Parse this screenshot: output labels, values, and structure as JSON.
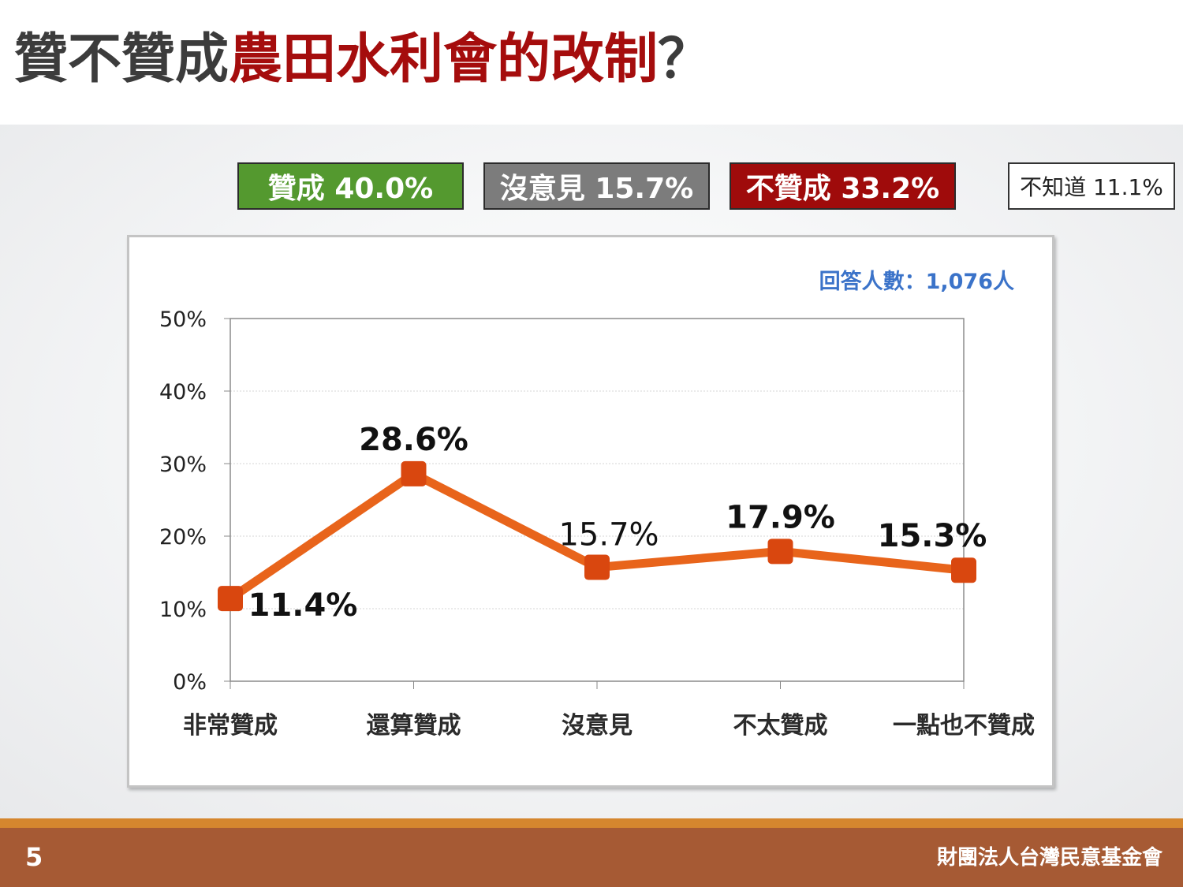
{
  "slide": {
    "title_prefix": "贊不贊成",
    "title_highlight": "農田水利會的改制",
    "title_suffix": "？",
    "page_number": "5",
    "organization": "財團法人台灣民意基金會"
  },
  "summary": {
    "agree": "贊成 40.0%",
    "neutral": "沒意見 15.7%",
    "disagree": "不贊成 33.2%",
    "unknown": "不知道 11.1%"
  },
  "colors": {
    "agree": "#54992f",
    "neutral": "#7c7c7c",
    "disagree": "#9f0b0b",
    "line": "#e8641b",
    "marker": "#d9470f",
    "respondents": "#3b73c9"
  },
  "chart_data": {
    "type": "line",
    "categories": [
      "非常贊成",
      "還算贊成",
      "沒意見",
      "不太贊成",
      "一點也不贊成"
    ],
    "values": [
      11.4,
      28.6,
      15.7,
      17.9,
      15.3
    ],
    "data_labels": [
      "11.4%",
      "28.6%",
      "15.7%",
      "17.9%",
      "15.3%"
    ],
    "y_ticks": [
      0,
      10,
      20,
      30,
      40,
      50
    ],
    "y_tick_labels": [
      "0%",
      "10%",
      "20%",
      "30%",
      "40%",
      "50%"
    ],
    "ylim": [
      0,
      50
    ],
    "respondents": "回答人數：1,076人",
    "grid": true
  }
}
